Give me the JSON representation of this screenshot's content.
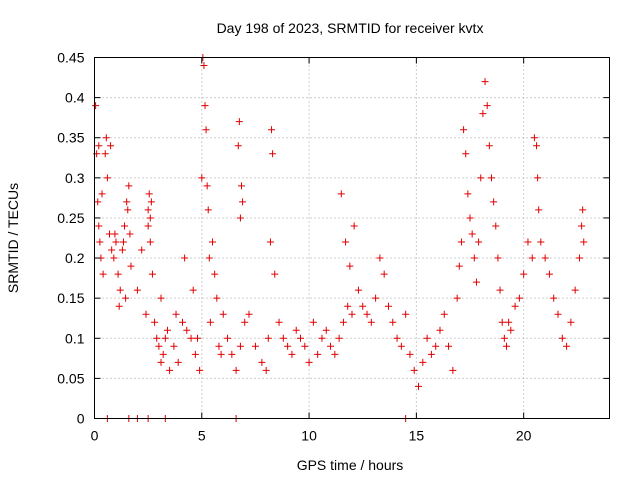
{
  "chart_data": {
    "type": "scatter",
    "title": "Day 198 of 2023, SRMTID for receiver kvtx",
    "xlabel": "GPS time / hours",
    "ylabel": "SRMTID / TECUs",
    "xlim": [
      0,
      24
    ],
    "ylim": [
      0,
      0.45
    ],
    "xticks": [
      0,
      5,
      10,
      15,
      20
    ],
    "xtick_labels": [
      "0",
      "5",
      "10",
      "15",
      "20"
    ],
    "yticks": [
      0,
      0.05,
      0.1,
      0.15,
      0.2,
      0.25,
      0.3,
      0.35,
      0.4,
      0.45
    ],
    "ytick_labels": [
      "0",
      "0.05",
      "0.1",
      "0.15",
      "0.2",
      "0.25",
      "0.3",
      "0.35",
      "0.4",
      "0.45"
    ],
    "grid": true,
    "marker": "plus",
    "color": "#e00000",
    "series": [
      {
        "name": "SRMTID",
        "x": [
          0.05,
          0.1,
          0.15,
          0.2,
          0.25,
          0.3,
          0.4,
          0.5,
          0.6,
          0.7,
          0.8,
          0.9,
          1.0,
          1.1,
          1.2,
          1.3,
          1.4,
          1.5,
          1.6,
          1.7,
          0.2,
          0.35,
          0.55,
          0.75,
          0.95,
          1.15,
          1.35,
          1.45,
          1.55,
          1.65,
          2.0,
          2.2,
          2.4,
          2.5,
          2.6,
          2.7,
          2.8,
          2.9,
          3.0,
          3.1,
          3.2,
          3.3,
          3.5,
          3.7,
          3.9,
          4.1,
          4.3,
          4.5,
          4.7,
          4.9,
          2.5,
          2.55,
          2.6,
          2.65,
          3.1,
          3.4,
          3.8,
          4.2,
          4.6,
          4.8,
          5.0,
          5.05,
          5.1,
          5.15,
          5.2,
          5.25,
          5.3,
          5.35,
          5.4,
          5.5,
          5.6,
          5.7,
          5.8,
          5.9,
          6.0,
          6.2,
          6.4,
          6.6,
          6.8,
          7.0,
          6.7,
          6.75,
          6.8,
          6.85,
          6.9,
          7.2,
          7.5,
          7.8,
          8.0,
          8.1,
          8.2,
          8.25,
          8.3,
          8.4,
          8.6,
          8.8,
          9.0,
          9.2,
          9.4,
          9.6,
          9.8,
          10.0,
          10.2,
          10.4,
          10.6,
          10.8,
          11.0,
          11.2,
          11.4,
          11.6,
          11.8,
          12.0,
          11.5,
          11.7,
          11.9,
          12.1,
          12.3,
          12.5,
          12.7,
          12.9,
          13.1,
          13.3,
          13.5,
          13.7,
          13.9,
          14.1,
          14.3,
          14.5,
          14.7,
          14.9,
          15.1,
          15.3,
          15.5,
          15.7,
          15.9,
          16.1,
          16.3,
          16.5,
          16.7,
          16.9,
          17.0,
          17.1,
          17.2,
          17.3,
          17.4,
          17.5,
          17.6,
          17.7,
          17.8,
          17.9,
          18.0,
          18.1,
          18.2,
          18.3,
          18.4,
          18.5,
          18.6,
          18.7,
          18.8,
          18.9,
          19.0,
          19.1,
          19.2,
          19.3,
          19.4,
          19.6,
          19.8,
          20.0,
          20.2,
          20.4,
          20.5,
          20.6,
          20.65,
          20.7,
          20.8,
          21.0,
          21.2,
          21.4,
          21.6,
          21.8,
          22.0,
          22.2,
          22.4,
          22.6,
          22.7,
          22.75,
          22.8,
          0.6,
          1.6,
          2.0,
          2.5,
          3.3,
          6.6,
          14.5
        ],
        "y": [
          0.39,
          0.33,
          0.27,
          0.24,
          0.22,
          0.2,
          0.18,
          0.33,
          0.3,
          0.23,
          0.21,
          0.2,
          0.22,
          0.18,
          0.16,
          0.21,
          0.24,
          0.27,
          0.29,
          0.19,
          0.34,
          0.28,
          0.35,
          0.34,
          0.23,
          0.14,
          0.22,
          0.15,
          0.26,
          0.23,
          0.16,
          0.21,
          0.13,
          0.24,
          0.25,
          0.18,
          0.12,
          0.1,
          0.09,
          0.07,
          0.08,
          0.1,
          0.06,
          0.09,
          0.07,
          0.12,
          0.11,
          0.1,
          0.08,
          0.06,
          0.26,
          0.28,
          0.22,
          0.27,
          0.15,
          0.11,
          0.13,
          0.2,
          0.16,
          0.1,
          0.3,
          0.45,
          0.44,
          0.39,
          0.36,
          0.29,
          0.26,
          0.2,
          0.12,
          0.22,
          0.18,
          0.15,
          0.09,
          0.08,
          0.13,
          0.1,
          0.08,
          0.06,
          0.09,
          0.12,
          0.34,
          0.37,
          0.25,
          0.29,
          0.27,
          0.13,
          0.09,
          0.07,
          0.06,
          0.1,
          0.22,
          0.36,
          0.33,
          0.18,
          0.12,
          0.1,
          0.09,
          0.08,
          0.11,
          0.1,
          0.09,
          0.07,
          0.12,
          0.08,
          0.1,
          0.11,
          0.09,
          0.08,
          0.1,
          0.12,
          0.14,
          0.13,
          0.28,
          0.22,
          0.19,
          0.24,
          0.16,
          0.14,
          0.13,
          0.12,
          0.15,
          0.2,
          0.18,
          0.14,
          0.12,
          0.1,
          0.09,
          0.13,
          0.08,
          0.06,
          0.04,
          0.07,
          0.1,
          0.08,
          0.09,
          0.11,
          0.13,
          0.09,
          0.06,
          0.15,
          0.19,
          0.22,
          0.36,
          0.33,
          0.28,
          0.25,
          0.23,
          0.2,
          0.17,
          0.22,
          0.3,
          0.38,
          0.42,
          0.39,
          0.34,
          0.3,
          0.27,
          0.24,
          0.2,
          0.16,
          0.12,
          0.1,
          0.09,
          0.12,
          0.11,
          0.14,
          0.15,
          0.18,
          0.22,
          0.2,
          0.35,
          0.34,
          0.3,
          0.26,
          0.22,
          0.2,
          0.18,
          0.15,
          0.13,
          0.1,
          0.09,
          0.12,
          0.16,
          0.2,
          0.24,
          0.26,
          0.22,
          0.0,
          0.0,
          0.0,
          0.0,
          0.0,
          0.0,
          0.0
        ]
      }
    ]
  }
}
